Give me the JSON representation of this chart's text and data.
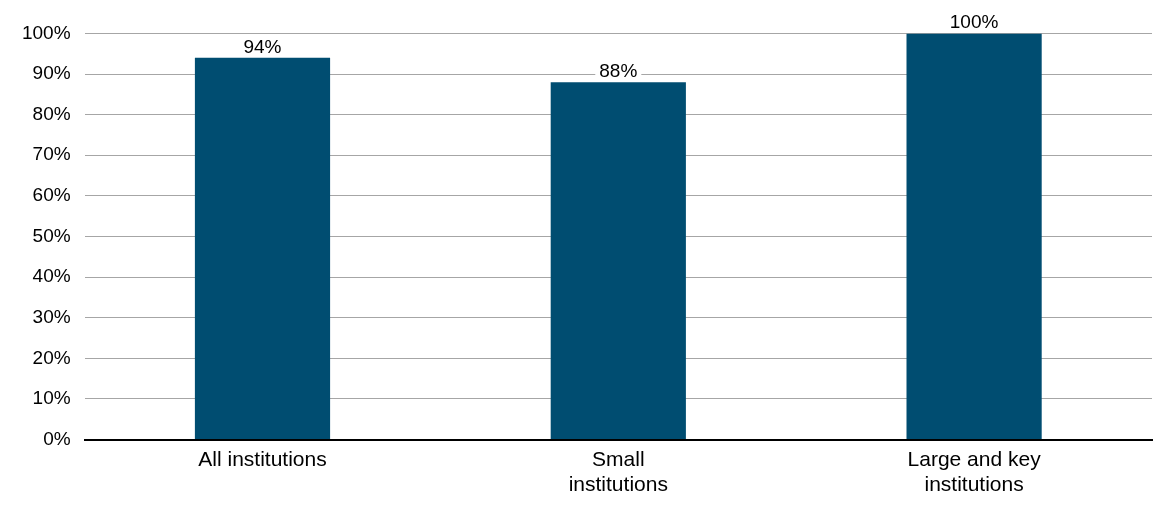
{
  "chart_data": {
    "type": "bar",
    "categories": [
      "All institutions",
      "Small institutions",
      "Large and key institutions"
    ],
    "values": [
      94,
      88,
      100
    ],
    "value_labels": [
      "94%",
      "88%",
      "100%"
    ],
    "color": "#004d71",
    "ylim": [
      0,
      100
    ],
    "yticks": [
      {
        "value": 0,
        "label": "0%"
      },
      {
        "value": 10,
        "label": "10%"
      },
      {
        "value": 20,
        "label": "20%"
      },
      {
        "value": 30,
        "label": "30%"
      },
      {
        "value": 40,
        "label": "40%"
      },
      {
        "value": 50,
        "label": "50%"
      },
      {
        "value": 60,
        "label": "60%"
      },
      {
        "value": 70,
        "label": "70%"
      },
      {
        "value": 80,
        "label": "80%"
      },
      {
        "value": 90,
        "label": "90%"
      },
      {
        "value": 100,
        "label": "100%"
      }
    ],
    "grid": "y",
    "legend": false
  }
}
